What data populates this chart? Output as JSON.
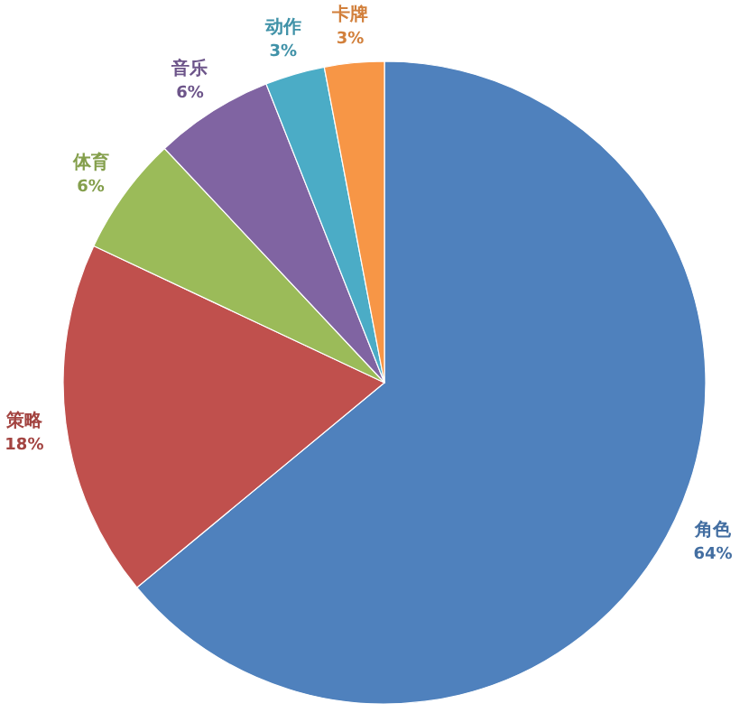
{
  "chart_data": {
    "type": "pie",
    "categories": [
      "角色",
      "策略",
      "体育",
      "音乐",
      "动作",
      "卡牌"
    ],
    "values": [
      64,
      18,
      6,
      6,
      3,
      3
    ],
    "colors": [
      "#4f81bd",
      "#c0504d",
      "#9bbb59",
      "#8064a2",
      "#4bacc6",
      "#f79646"
    ],
    "value_labels": [
      "64%",
      "18%",
      "6%",
      "6%",
      "3%",
      "3%"
    ]
  }
}
